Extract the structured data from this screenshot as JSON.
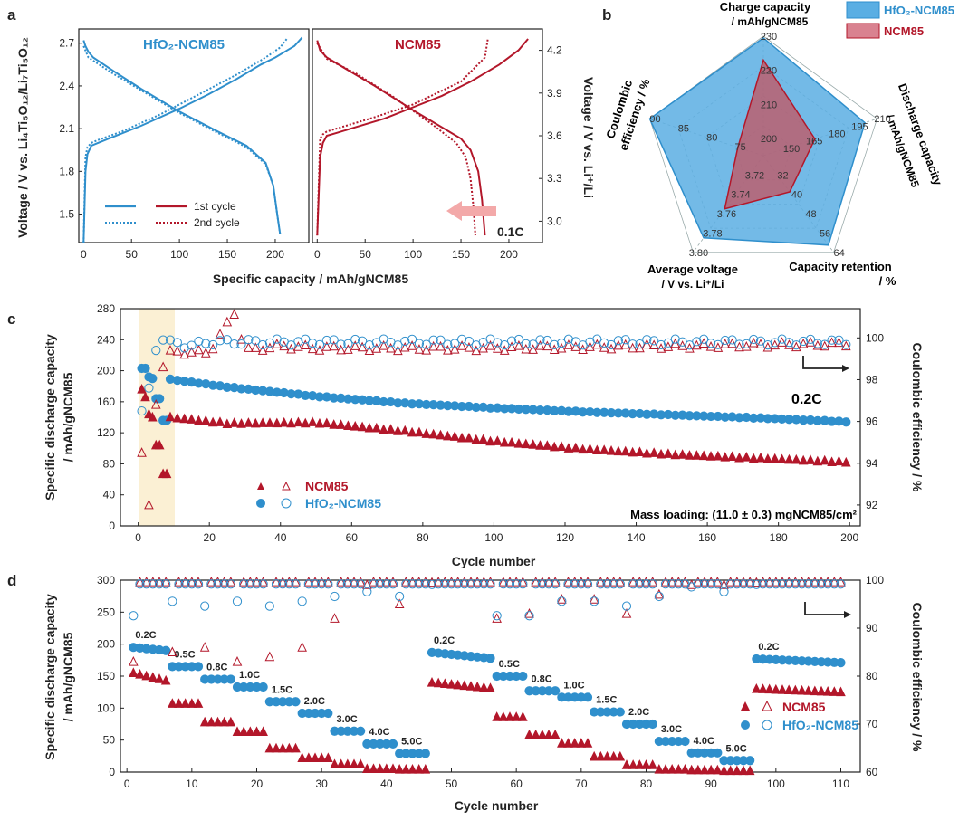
{
  "colors": {
    "blue": "#2f8fcc",
    "red": "#b3172a",
    "arrow_fill": "#f3a9a9",
    "highlight": "#fbf0d4",
    "radar_blue": "#5aaee3",
    "radar_red": "#c4535f"
  },
  "panel_a": {
    "label": "a",
    "left_title": "HfO₂-NCM85",
    "right_title": "NCM85",
    "ylabel_left": "Voltage / V vs. Li₄Ti₅O₁₂/Li₇Ti₅O₁₂",
    "ylabel_right": "Voltage / V vs. Li⁺/Li",
    "xlabel": "Specific capacity / mAh/gNCM85",
    "legend_first": "1st cycle",
    "legend_second": "2nd cycle",
    "rate_label": "0.1C"
  },
  "panel_b": {
    "label": "b",
    "legend_blue": "HfO₂-NCM85",
    "legend_red": "NCM85",
    "axis_titles": {
      "charge": [
        "Charge capacity",
        "/ mAh/gNCM85"
      ],
      "discharge": [
        "Discharge capacity",
        "/ mAh/gNCM85"
      ],
      "retention": [
        "Capacity retention",
        "/ %"
      ],
      "voltage": [
        "Average voltage",
        "/ V vs. Li⁺/Li"
      ],
      "ce": [
        "Coulombic",
        "efficiency / %"
      ]
    }
  },
  "panel_c": {
    "label": "c",
    "ylabel_left": [
      "Specific discharge capacity",
      "/ mAh/gNCM85"
    ],
    "ylabel_right": "Coulombic efficiency / %",
    "xlabel": "Cycle number",
    "rate_label": "0.2C",
    "mass_loading": "Mass loading: (11.0 ± 0.3) mgNCM85/cm²",
    "legend": [
      "NCM85",
      "HfO₂-NCM85"
    ]
  },
  "panel_d": {
    "label": "d",
    "ylabel_left": [
      "Specific discharge capacity",
      "/ mAh/gNCM85"
    ],
    "ylabel_right": "Coulombic efficiency / %",
    "xlabel": "Cycle number",
    "legend": [
      "NCM85",
      "HfO₂-NCM85"
    ]
  },
  "chart_data": [
    {
      "id": "a-left",
      "type": "line",
      "title": "HfO₂-NCM85",
      "xlabel": "Specific capacity / mAh/gNCM85",
      "ylabel": "Voltage / V vs. Li4Ti5O12/Li7Ti5O12",
      "xlim": [
        -5,
        235
      ],
      "ylim": [
        1.3,
        2.8
      ],
      "xticks": [
        0,
        50,
        100,
        150,
        200
      ],
      "yticks": [
        1.5,
        1.8,
        2.1,
        2.4,
        2.7
      ],
      "series": [
        {
          "name": "1st cycle charge",
          "style": "solid",
          "x": [
            0,
            2,
            4,
            8,
            15,
            30,
            60,
            100,
            130,
            160,
            185,
            200,
            210,
            220,
            228
          ],
          "y": [
            1.3,
            1.8,
            1.92,
            1.98,
            2.0,
            2.04,
            2.12,
            2.24,
            2.34,
            2.45,
            2.55,
            2.6,
            2.64,
            2.68,
            2.74
          ]
        },
        {
          "name": "1st cycle discharge",
          "style": "solid",
          "x": [
            0,
            2,
            5,
            10,
            30,
            60,
            100,
            140,
            170,
            190,
            198,
            202,
            205
          ],
          "y": [
            2.72,
            2.68,
            2.64,
            2.6,
            2.51,
            2.38,
            2.22,
            2.08,
            1.98,
            1.86,
            1.7,
            1.5,
            1.36
          ]
        },
        {
          "name": "2nd cycle charge",
          "style": "dotted",
          "x": [
            0,
            2,
            4,
            8,
            15,
            40,
            80,
            120,
            160,
            190,
            205,
            212
          ],
          "y": [
            1.3,
            1.9,
            1.97,
            2.0,
            2.02,
            2.08,
            2.2,
            2.34,
            2.48,
            2.6,
            2.67,
            2.73
          ]
        },
        {
          "name": "2nd cycle discharge",
          "style": "dotted",
          "x": [
            0,
            5,
            30,
            60,
            100,
            140,
            170,
            190,
            198,
            202,
            205
          ],
          "y": [
            2.68,
            2.6,
            2.49,
            2.37,
            2.21,
            2.07,
            1.97,
            1.85,
            1.7,
            1.5,
            1.36
          ]
        }
      ]
    },
    {
      "id": "a-right",
      "type": "line",
      "title": "NCM85",
      "xlabel": "Specific capacity / mAh/gNCM85",
      "ylabel": "Voltage / V vs. Li+/Li",
      "xlim": [
        -5,
        235
      ],
      "ylim": [
        2.85,
        4.35
      ],
      "xticks": [
        0,
        50,
        100,
        150,
        200
      ],
      "yticks": [
        3.0,
        3.3,
        3.6,
        3.9,
        4.2
      ],
      "series": [
        {
          "name": "1st cycle charge",
          "style": "solid",
          "x": [
            0,
            3,
            6,
            10,
            20,
            40,
            70,
            100,
            130,
            160,
            190,
            210,
            220
          ],
          "y": [
            2.9,
            3.45,
            3.55,
            3.6,
            3.62,
            3.66,
            3.72,
            3.8,
            3.88,
            3.98,
            4.1,
            4.2,
            4.28
          ]
        },
        {
          "name": "1st cycle discharge",
          "style": "solid",
          "x": [
            0,
            3,
            10,
            30,
            60,
            100,
            130,
            150,
            160,
            168,
            172,
            175
          ],
          "y": [
            4.27,
            4.2,
            4.15,
            4.07,
            3.95,
            3.78,
            3.66,
            3.58,
            3.5,
            3.35,
            3.15,
            2.9
          ]
        },
        {
          "name": "2nd cycle charge",
          "style": "dotted",
          "x": [
            0,
            3,
            6,
            10,
            30,
            60,
            100,
            150,
            175,
            178
          ],
          "y": [
            2.9,
            3.58,
            3.61,
            3.63,
            3.67,
            3.73,
            3.82,
            3.98,
            4.15,
            4.28
          ]
        },
        {
          "name": "2nd cycle discharge",
          "style": "dotted",
          "x": [
            0,
            10,
            40,
            80,
            120,
            145,
            155,
            160,
            163,
            165
          ],
          "y": [
            4.25,
            4.14,
            4.04,
            3.87,
            3.68,
            3.55,
            3.45,
            3.3,
            3.1,
            2.9
          ]
        }
      ]
    },
    {
      "id": "b",
      "type": "radar",
      "axes": [
        {
          "name": "Charge capacity",
          "ticks": [
            "200",
            "210",
            "220",
            "230"
          ],
          "range": [
            195,
            230
          ]
        },
        {
          "name": "Discharge capacity",
          "ticks": [
            "150",
            "165",
            "180",
            "195",
            "210"
          ],
          "range": [
            135,
            210
          ]
        },
        {
          "name": "Capacity retention",
          "ticks": [
            "32",
            "40",
            "48",
            "56",
            "64"
          ],
          "range": [
            24,
            64
          ]
        },
        {
          "name": "Average voltage",
          "ticks": [
            "3.72",
            "3.74",
            "3.76",
            "3.78",
            "3.80"
          ],
          "range": [
            3.7,
            3.8
          ]
        },
        {
          "name": "Coulombic efficiency",
          "ticks": [
            "75",
            "80",
            "85",
            "90"
          ],
          "range": [
            70,
            90
          ]
        }
      ],
      "series": [
        {
          "name": "HfO₂-NCM85",
          "values": [
            229.5,
            202,
            61,
            3.785,
            90
          ]
        },
        {
          "name": "NCM85",
          "values": [
            223,
            169,
            39,
            3.755,
            74.5
          ]
        }
      ]
    },
    {
      "id": "c",
      "type": "scatter",
      "xlabel": "Cycle number",
      "ylabel": "Specific discharge capacity / mAh/gNCM85",
      "y2label": "Coulombic efficiency / %",
      "xlim": [
        -5,
        203
      ],
      "ylim": [
        0,
        280
      ],
      "y2lim": [
        91,
        101.4
      ],
      "xticks": [
        0,
        20,
        40,
        60,
        80,
        100,
        120,
        140,
        160,
        180,
        200
      ],
      "yticks": [
        0,
        40,
        80,
        120,
        160,
        200,
        240,
        280
      ],
      "y2ticks": [
        92,
        94,
        96,
        98,
        100
      ],
      "series": [
        {
          "name": "NCM85 capacity",
          "marker": "filled-triangle",
          "x": [
            1,
            2,
            3,
            4,
            5,
            6,
            7,
            8,
            9,
            25,
            50,
            75,
            100,
            125,
            150,
            175,
            200
          ],
          "y": [
            176,
            166,
            144,
            140,
            104,
            104,
            67,
            67,
            140,
            132,
            133,
            122,
            109,
            99,
            92,
            87,
            82
          ]
        },
        {
          "name": "HfO₂-NCM85 capacity",
          "marker": "filled-circle",
          "x": [
            1,
            2,
            3,
            4,
            5,
            6,
            7,
            8,
            9,
            25,
            50,
            75,
            100,
            125,
            150,
            175,
            200
          ],
          "y": [
            203,
            203,
            192,
            190,
            164,
            164,
            136,
            136,
            189,
            179,
            167,
            158,
            152,
            147,
            143,
            139,
            134
          ]
        },
        {
          "name": "NCM85 CE",
          "marker": "open-triangle",
          "x": [
            1,
            3,
            5,
            7,
            9,
            14,
            20,
            27,
            30,
            40,
            50,
            100,
            150,
            200
          ],
          "y": [
            94.5,
            92.0,
            96.8,
            98.6,
            99.4,
            99.3,
            99.3,
            101.2,
            99.4,
            99.6,
            99.5,
            99.5,
            99.6,
            99.7
          ]
        },
        {
          "name": "HfO₂-NCM85 CE",
          "marker": "open-circle",
          "x": [
            1,
            3,
            5,
            7,
            9,
            14,
            20,
            30,
            40,
            50,
            100,
            150,
            200
          ],
          "y": [
            96.5,
            97.6,
            99.4,
            99.9,
            99.9,
            99.6,
            99.8,
            99.8,
            99.8,
            99.8,
            99.8,
            99.8,
            99.8
          ]
        }
      ]
    },
    {
      "id": "d",
      "type": "scatter",
      "xlabel": "Cycle number",
      "ylabel": "Specific discharge capacity / mAh/gNCM85",
      "y2label": "Coulombic efficiency / %",
      "xlim": [
        -1,
        113
      ],
      "ylim": [
        0,
        300
      ],
      "y2lim": [
        60,
        100
      ],
      "xticks": [
        0,
        10,
        20,
        30,
        40,
        50,
        60,
        70,
        80,
        90,
        100,
        110
      ],
      "yticks": [
        0,
        50,
        100,
        150,
        200,
        250,
        300
      ],
      "y2ticks": [
        60,
        70,
        80,
        90,
        100
      ],
      "rate_steps": [
        {
          "label": "0.2C",
          "start": 1,
          "end": 6,
          "ncm": [
            155,
            143
          ],
          "hfo": [
            195,
            190
          ]
        },
        {
          "label": "0.5C",
          "start": 7,
          "end": 11,
          "ncm": [
            107,
            107
          ],
          "hfo": [
            165,
            165
          ]
        },
        {
          "label": "0.8C",
          "start": 12,
          "end": 16,
          "ncm": [
            78,
            78
          ],
          "hfo": [
            145,
            145
          ]
        },
        {
          "label": "1.0C",
          "start": 17,
          "end": 21,
          "ncm": [
            63,
            63
          ],
          "hfo": [
            133,
            133
          ]
        },
        {
          "label": "1.5C",
          "start": 22,
          "end": 26,
          "ncm": [
            37,
            37
          ],
          "hfo": [
            110,
            110
          ]
        },
        {
          "label": "2.0C",
          "start": 27,
          "end": 31,
          "ncm": [
            22,
            22
          ],
          "hfo": [
            92,
            92
          ]
        },
        {
          "label": "3.0C",
          "start": 32,
          "end": 36,
          "ncm": [
            12,
            12
          ],
          "hfo": [
            64,
            64
          ]
        },
        {
          "label": "4.0C",
          "start": 37,
          "end": 41,
          "ncm": [
            5,
            5
          ],
          "hfo": [
            44,
            44
          ]
        },
        {
          "label": "5.0C",
          "start": 42,
          "end": 46,
          "ncm": [
            4,
            4
          ],
          "hfo": [
            29,
            29
          ]
        },
        {
          "label": "0.2C",
          "start": 47,
          "end": 56,
          "ncm": [
            140,
            131
          ],
          "hfo": [
            187,
            178
          ]
        },
        {
          "label": "0.5C",
          "start": 57,
          "end": 61,
          "ncm": [
            86,
            86
          ],
          "hfo": [
            150,
            150
          ]
        },
        {
          "label": "0.8C",
          "start": 62,
          "end": 66,
          "ncm": [
            58,
            58
          ],
          "hfo": [
            127,
            127
          ]
        },
        {
          "label": "1.0C",
          "start": 67,
          "end": 71,
          "ncm": [
            45,
            45
          ],
          "hfo": [
            117,
            117
          ]
        },
        {
          "label": "1.5C",
          "start": 72,
          "end": 76,
          "ncm": [
            24,
            24
          ],
          "hfo": [
            94,
            94
          ]
        },
        {
          "label": "2.0C",
          "start": 77,
          "end": 81,
          "ncm": [
            11,
            11
          ],
          "hfo": [
            75,
            75
          ]
        },
        {
          "label": "3.0C",
          "start": 82,
          "end": 86,
          "ncm": [
            4,
            4
          ],
          "hfo": [
            48,
            48
          ]
        },
        {
          "label": "4.0C",
          "start": 87,
          "end": 91,
          "ncm": [
            3,
            3
          ],
          "hfo": [
            30,
            30
          ]
        },
        {
          "label": "5.0C",
          "start": 92,
          "end": 96,
          "ncm": [
            2,
            2
          ],
          "hfo": [
            18,
            18
          ]
        },
        {
          "label": "0.2C",
          "start": 97,
          "end": 110,
          "ncm": [
            130,
            125
          ],
          "hfo": [
            177,
            171
          ]
        }
      ],
      "ce_ncm85": [
        [
          1,
          83
        ],
        [
          2,
          97
        ],
        [
          3,
          99
        ],
        [
          4,
          98
        ],
        [
          7,
          85
        ],
        [
          12,
          86
        ],
        [
          17,
          83
        ],
        [
          22,
          84
        ],
        [
          27,
          86
        ],
        [
          32,
          92
        ],
        [
          37,
          99
        ],
        [
          42,
          95
        ],
        [
          47,
          99.5
        ],
        [
          57,
          92
        ],
        [
          62,
          93
        ],
        [
          67,
          96
        ],
        [
          72,
          96
        ],
        [
          77,
          93
        ],
        [
          82,
          97
        ],
        [
          87,
          99
        ],
        [
          92,
          99
        ],
        [
          97,
          99.5
        ],
        [
          110,
          99.5
        ]
      ],
      "ce_hfo2": [
        [
          1,
          93
        ],
        [
          2,
          98
        ],
        [
          3,
          99
        ],
        [
          5,
          99.5
        ],
        [
          7,
          96
        ],
        [
          12,
          95
        ],
        [
          17,
          96
        ],
        [
          22,
          95
        ],
        [
          27,
          96
        ],
        [
          32,
          97
        ],
        [
          37,
          98
        ],
        [
          42,
          97
        ],
        [
          47,
          99.5
        ],
        [
          57,
          93
        ],
        [
          62,
          93
        ],
        [
          67,
          96
        ],
        [
          72,
          96
        ],
        [
          77,
          95
        ],
        [
          82,
          97
        ],
        [
          87,
          99
        ],
        [
          92,
          98
        ],
        [
          97,
          99.5
        ],
        [
          110,
          99.5
        ]
      ]
    }
  ]
}
